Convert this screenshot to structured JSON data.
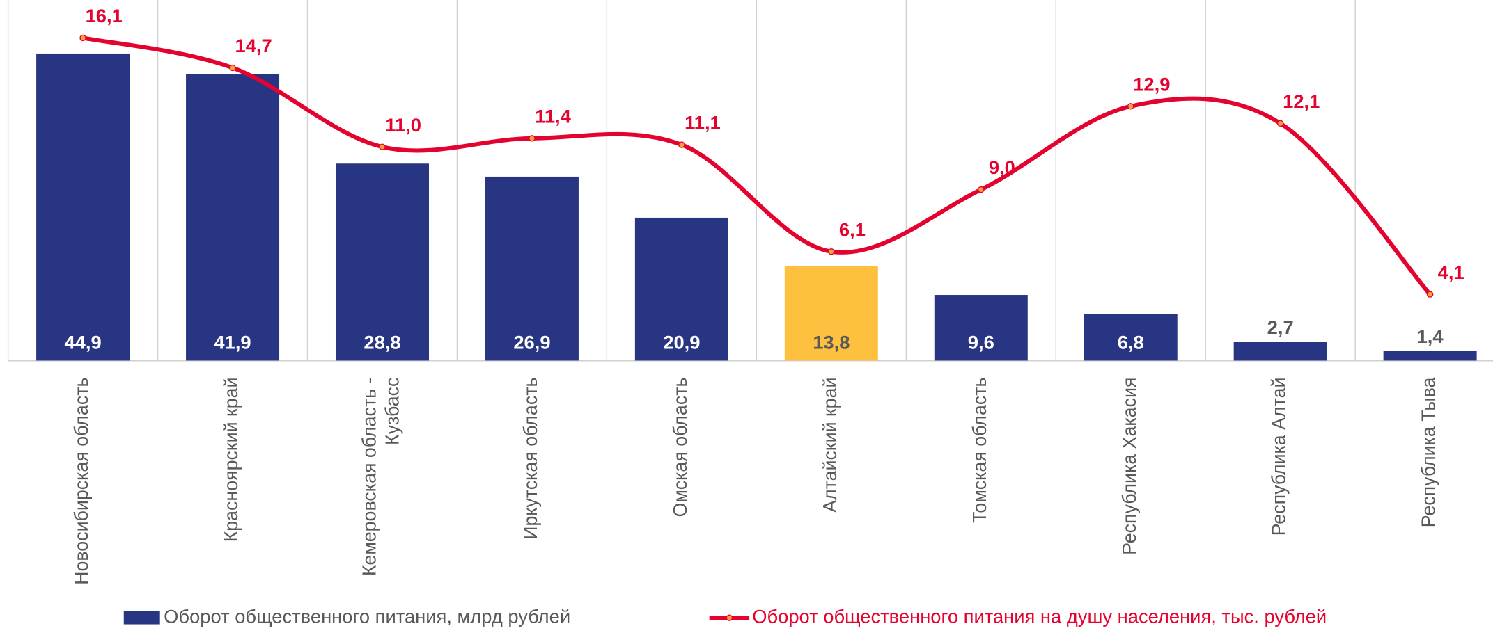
{
  "chart_data": {
    "type": "bar",
    "categories": [
      "Новосибирская область",
      "Красноярский край",
      "Кемеровская область - Кузбасс",
      "Иркутская область",
      "Омская область",
      "Алтайский край",
      "Томская область",
      "Республика Хакасия",
      "Республика Алтай",
      "Республика Тыва"
    ],
    "series": [
      {
        "name": "Оборот общественного питания, млрд рублей",
        "type": "bar",
        "color": "#283583",
        "colors": [
          "#283583",
          "#283583",
          "#283583",
          "#283583",
          "#283583",
          "#FDC13F",
          "#283583",
          "#283583",
          "#283583",
          "#283583"
        ],
        "values": [
          44.9,
          41.9,
          28.8,
          26.9,
          20.9,
          13.8,
          9.6,
          6.8,
          2.7,
          1.4
        ],
        "value_labels": [
          "44,9",
          "41,9",
          "28,8",
          "26,9",
          "20,9",
          "13,8",
          "9,6",
          "6,8",
          "2,7",
          "1,4"
        ]
      },
      {
        "name": "Оборот общественного питания на душу населения, тыс. рублей",
        "type": "line",
        "axis": "y2",
        "color": "#E4032E",
        "values": [
          16.1,
          14.7,
          11.0,
          11.4,
          11.1,
          6.1,
          9.0,
          12.9,
          12.1,
          4.1
        ],
        "value_labels": [
          "16,1",
          "14,7",
          "11,0",
          "11,4",
          "11,1",
          "6,1",
          "9,0",
          "12,9",
          "12,1",
          "4,1"
        ]
      }
    ],
    "ylim": [
      0,
      50
    ],
    "y2lim": [
      1,
      17
    ],
    "legend": "bottom"
  }
}
